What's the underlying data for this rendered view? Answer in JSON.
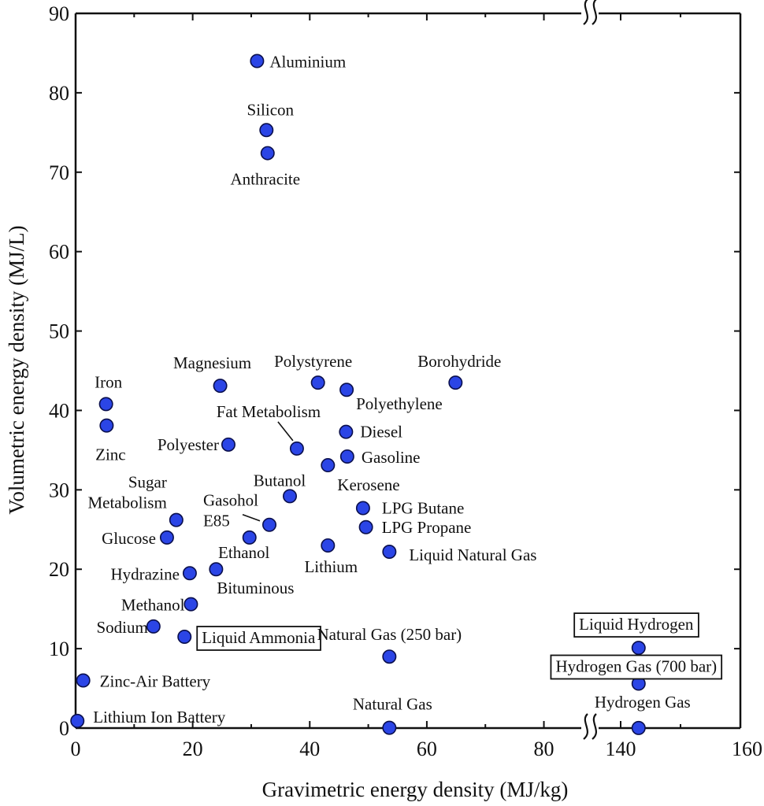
{
  "chart_data": {
    "type": "scatter",
    "title": "",
    "xlabel": "Gravimetric energy density (MJ/kg)",
    "ylabel": "Volumetric energy density (MJ/L)",
    "xlim": [
      0,
      160
    ],
    "ylim": [
      0,
      90
    ],
    "x_axis_break": {
      "from": 88,
      "to": 135
    },
    "x_ticks": [
      0,
      20,
      40,
      60,
      80,
      140,
      160
    ],
    "y_ticks": [
      0,
      10,
      20,
      30,
      40,
      50,
      60,
      70,
      80,
      90
    ],
    "grid": false,
    "colors": {
      "marker": "#2b45e6",
      "marker_edge": "#0a0f4d",
      "axis": "#111111"
    },
    "points": [
      {
        "name": "Aluminium",
        "x": 31,
        "y": 84
      },
      {
        "name": "Silicon",
        "x": 32.6,
        "y": 75.3
      },
      {
        "name": "Anthracite",
        "x": 32.8,
        "y": 72.4
      },
      {
        "name": "Iron",
        "x": 5.2,
        "y": 40.8
      },
      {
        "name": "Zinc",
        "x": 5.3,
        "y": 38.1
      },
      {
        "name": "Magnesium",
        "x": 24.7,
        "y": 43.1
      },
      {
        "name": "Polystyrene",
        "x": 41.4,
        "y": 43.5
      },
      {
        "name": "Polyethylene",
        "x": 46.3,
        "y": 42.6
      },
      {
        "name": "Borohydride",
        "x": 64.9,
        "y": 43.5
      },
      {
        "name": "Fat Metabolism",
        "x": 37.8,
        "y": 35.2
      },
      {
        "name": "Polyester",
        "x": 26.1,
        "y": 35.7
      },
      {
        "name": "Diesel",
        "x": 46.2,
        "y": 37.3
      },
      {
        "name": "Gasoline",
        "x": 46.4,
        "y": 34.2
      },
      {
        "name": "Kerosene",
        "x": 43.1,
        "y": 33.1
      },
      {
        "name": "Butanol",
        "x": 36.6,
        "y": 29.2
      },
      {
        "name": "Sugar Metabolism",
        "x": 17.2,
        "y": 26.2
      },
      {
        "name": "Gasohol E85",
        "x": 33.1,
        "y": 25.6
      },
      {
        "name": "LPG Butane",
        "x": 49.1,
        "y": 27.7
      },
      {
        "name": "LPG Propane",
        "x": 49.6,
        "y": 25.3
      },
      {
        "name": "Glucose",
        "x": 15.6,
        "y": 24.0
      },
      {
        "name": "Ethanol",
        "x": 29.7,
        "y": 24.0
      },
      {
        "name": "Lithium",
        "x": 43.1,
        "y": 23.0
      },
      {
        "name": "Liquid Natural Gas",
        "x": 53.6,
        "y": 22.2
      },
      {
        "name": "Hydrazine",
        "x": 19.5,
        "y": 19.5
      },
      {
        "name": "Bituminous",
        "x": 24.0,
        "y": 20.0
      },
      {
        "name": "Methanol",
        "x": 19.7,
        "y": 15.6
      },
      {
        "name": "Sodium",
        "x": 13.3,
        "y": 12.8
      },
      {
        "name": "Liquid Ammonia",
        "x": 18.6,
        "y": 11.5
      },
      {
        "name": "Natural Gas (250 bar)",
        "x": 53.6,
        "y": 9.0
      },
      {
        "name": "Zinc-Air Battery",
        "x": 1.3,
        "y": 6.0
      },
      {
        "name": "Lithium Ion Battery",
        "x": 0.3,
        "y": 0.9
      },
      {
        "name": "Natural Gas",
        "x": 53.6,
        "y": 0.04
      },
      {
        "name": "Liquid Hydrogen",
        "x": 143,
        "y": 10.1
      },
      {
        "name": "Hydrogen Gas (700 bar)",
        "x": 143,
        "y": 5.6
      },
      {
        "name": "Hydrogen Gas",
        "x": 143,
        "y": 0.01
      }
    ]
  }
}
